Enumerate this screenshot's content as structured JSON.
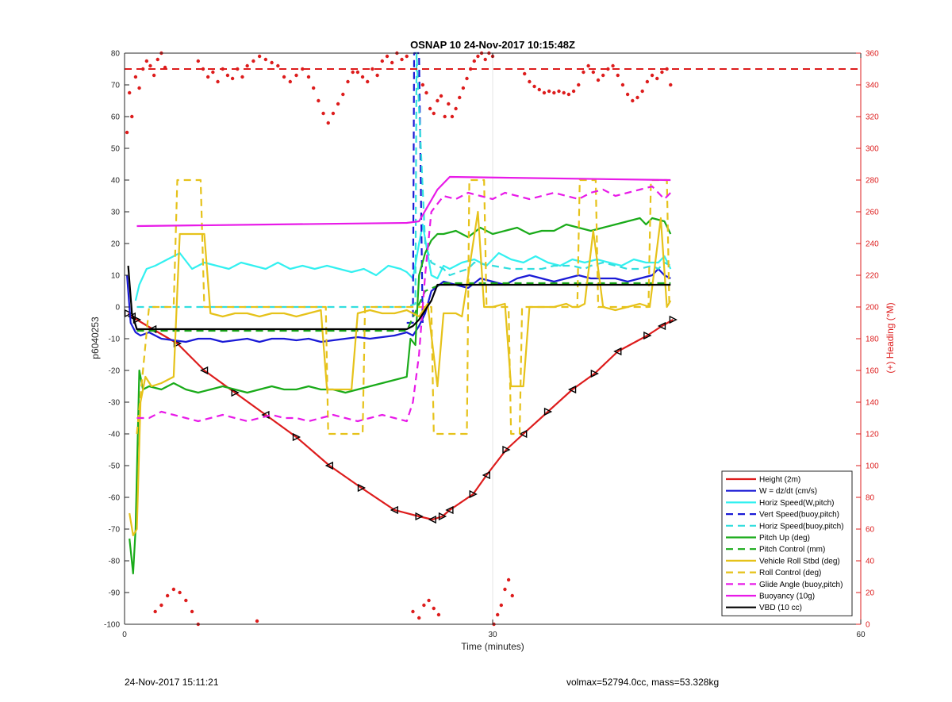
{
  "chart_data": {
    "type": "line",
    "title": "OSNAP 10 24-Nov-2017 10:15:48Z",
    "xlabel": "Time (minutes)",
    "ylabel": "p6040253",
    "y2label": "(+) Heading (°M)",
    "xlim": [
      0,
      60
    ],
    "ylim": [
      -100,
      80
    ],
    "y2lim": [
      0,
      360
    ],
    "x_ticks": [
      0,
      30,
      60
    ],
    "y_ticks": [
      -100,
      -90,
      -80,
      -70,
      -60,
      -50,
      -40,
      -30,
      -20,
      -10,
      0,
      10,
      20,
      30,
      40,
      50,
      60,
      70,
      80
    ],
    "y2_ticks": [
      0,
      20,
      40,
      60,
      80,
      100,
      120,
      140,
      160,
      180,
      200,
      220,
      240,
      260,
      280,
      300,
      320,
      340,
      360
    ],
    "x_grid": true,
    "y_grid": false,
    "legend_position": "bottom-right",
    "colors": {
      "height": "#dd1c1c",
      "w": "#1a1ad6",
      "hspeed": "#33f0f0",
      "pitch": "#1aab1a",
      "roll": "#e6c21a",
      "glide": "#e81ae8",
      "vbd": "#000000",
      "heading": "#dd1c1c",
      "vspeed_buoy": "#1a1ad6",
      "hspeed_buoy": "#33dede"
    },
    "series": [
      {
        "name": "Height (2m)",
        "key": "height",
        "axis": "left",
        "style": "solid",
        "markers": "triangles",
        "x": [
          0.3,
          0.6,
          1.0,
          2.3,
          4.3,
          6.5,
          9.0,
          11.5,
          14.0,
          16.7,
          19.3,
          22.0,
          24.0,
          25.1,
          25.9,
          26.5,
          28.4,
          29.5,
          31.1,
          32.5,
          34.5,
          36.5,
          38.3,
          40.2,
          42.6,
          43.8,
          44.7
        ],
        "y": [
          -2,
          -3,
          -4,
          -7,
          -11.5,
          -20,
          -27,
          -34,
          -41,
          -50,
          -57,
          -64,
          -66,
          -67,
          -66,
          -64,
          -59,
          -53,
          -45,
          -40,
          -33,
          -26,
          -21,
          -14,
          -9,
          -6,
          -4
        ]
      },
      {
        "name": "W = dz/dt (cm/s)",
        "key": "w",
        "axis": "left",
        "style": "solid",
        "x": [
          0.2,
          0.5,
          0.9,
          1.3,
          2.0,
          3.0,
          4.0,
          5.0,
          6.0,
          7.0,
          8.0,
          9.0,
          10.0,
          11.0,
          12.0,
          13.0,
          14.0,
          15.0,
          16.0,
          17.0,
          18.0,
          19.0,
          20.0,
          21.0,
          22.0,
          23.0,
          23.5,
          24.0,
          24.5,
          25.0,
          26.0,
          27.0,
          28.0,
          29.0,
          30.0,
          31.0,
          32.0,
          33.0,
          34.0,
          35.0,
          36.0,
          37.0,
          38.0,
          39.0,
          40.0,
          41.0,
          42.0,
          43.0,
          43.5,
          44.0,
          44.5
        ],
        "y": [
          10,
          -5,
          -8,
          -9,
          -8,
          -10,
          -10.5,
          -11,
          -10,
          -10,
          -11,
          -10.5,
          -10,
          -11,
          -10,
          -10,
          -10.5,
          -10,
          -11,
          -10.5,
          -10,
          -9.5,
          -10,
          -9.5,
          -9,
          -8,
          -9,
          -6,
          -2,
          5,
          8,
          7,
          6,
          9,
          8,
          7,
          9,
          10,
          9,
          8,
          9,
          10,
          9,
          9,
          9,
          8,
          9,
          10,
          12,
          10,
          9
        ]
      },
      {
        "name": "Horiz Speed(W,pitch)",
        "key": "hspeed",
        "axis": "left",
        "style": "solid",
        "x": [
          0.9,
          1.2,
          1.8,
          2.5,
          3.5,
          4.5,
          5.5,
          6.5,
          7.5,
          8.5,
          9.5,
          10.5,
          11.5,
          12.5,
          13.5,
          14.5,
          15.5,
          16.5,
          17.5,
          18.5,
          19.5,
          20.5,
          21.5,
          22.5,
          23.0,
          23.5,
          24.0,
          24.3,
          25.0,
          25.5,
          26.0,
          26.5,
          27.5,
          28.5,
          29.5,
          30.5,
          31.5,
          32.5,
          33.5,
          34.5,
          35.5,
          36.5,
          37.5,
          38.5,
          39.5,
          40.5,
          41.5,
          42.5,
          43.5,
          44.0,
          44.5
        ],
        "y": [
          2,
          7,
          12,
          13,
          15,
          17,
          12,
          14,
          13,
          12,
          14,
          13,
          12,
          14,
          12,
          13,
          12,
          13,
          12,
          11,
          12,
          10,
          13,
          12,
          11,
          9,
          20,
          26,
          10,
          9,
          13,
          12,
          14,
          15,
          13,
          17,
          15,
          14,
          16,
          14,
          13,
          15,
          14,
          15,
          14,
          13,
          15,
          14,
          14,
          16,
          12
        ]
      },
      {
        "name": "Vert Speed(buoy,pitch)",
        "key": "vspeed_buoy",
        "axis": "left",
        "style": "dash",
        "x": [
          23.0,
          23.5,
          23.6,
          24.0,
          24.3
        ],
        "y": [
          -5,
          -5,
          80,
          80,
          -5
        ]
      },
      {
        "name": "Horiz Speed(buoy,pitch)",
        "key": "hspeed_buoy",
        "axis": "left",
        "style": "dash",
        "x": [
          1.0,
          23.0,
          23.7,
          23.8,
          24.5,
          25.0,
          26.0,
          26.5,
          27.2,
          28.0,
          28.5,
          30.0,
          31.5,
          32.0,
          33.0,
          34.0,
          35.0,
          36.0,
          36.5,
          37.5,
          38.0,
          39.0,
          40.0,
          41.0,
          42.0,
          43.0,
          43.5,
          44.0,
          44.5
        ],
        "y": [
          0,
          0,
          1,
          80,
          20,
          14,
          12,
          10,
          11,
          12,
          14,
          13,
          12,
          12,
          12,
          12,
          13,
          13,
          13,
          12,
          13,
          14,
          13,
          12,
          12,
          13,
          12,
          14,
          13
        ]
      },
      {
        "name": "Pitch Up (deg)",
        "key": "pitch",
        "axis": "left",
        "style": "solid",
        "x": [
          0.4,
          0.7,
          0.9,
          1.2,
          1.5,
          2.0,
          3.0,
          4.0,
          5.0,
          6.0,
          7.0,
          8.0,
          9.0,
          10.0,
          11.0,
          12.0,
          13.0,
          14.0,
          15.0,
          16.0,
          17.0,
          18.0,
          19.0,
          20.0,
          21.0,
          22.0,
          23.0,
          23.3,
          23.7,
          24.0,
          24.5,
          25.0,
          25.5,
          26.0,
          27.0,
          28.0,
          29.0,
          30.0,
          31.0,
          32.0,
          33.0,
          34.0,
          35.0,
          36.0,
          37.0,
          38.0,
          39.0,
          40.0,
          41.0,
          42.0,
          42.5,
          43.0,
          44.0,
          44.5
        ],
        "y": [
          -73,
          -84,
          -70,
          -20,
          -26,
          -25,
          -26,
          -24,
          -26,
          -27,
          -26,
          -25,
          -26,
          -27,
          -26,
          -25,
          -26,
          -26,
          -25,
          -26,
          -26,
          -27,
          -26,
          -25,
          -24,
          -23,
          -22,
          -10,
          -12,
          10,
          17,
          21,
          23,
          23,
          24,
          22,
          25,
          23,
          24,
          25,
          23,
          24,
          24,
          26,
          25,
          24,
          25,
          26,
          27,
          28,
          26,
          28,
          27,
          23
        ]
      },
      {
        "name": "Pitch Control (mm)",
        "key": "pitch_control",
        "axis": "left",
        "style": "dash",
        "x": [
          1.0,
          23.0,
          24.5,
          26.0,
          44.5
        ],
        "y": [
          -7.5,
          -7.5,
          5,
          7.5,
          7.5
        ]
      },
      {
        "name": "Vehicle Roll Stbd (deg)",
        "key": "roll",
        "axis": "left",
        "style": "solid",
        "x": [
          0.4,
          0.7,
          1.0,
          1.3,
          1.7,
          2.2,
          3.0,
          4.0,
          4.5,
          6.5,
          7.0,
          8.0,
          9.0,
          10.0,
          11.0,
          12.0,
          13.0,
          14.0,
          15.0,
          16.0,
          16.5,
          18.5,
          19.0,
          20.0,
          21.0,
          22.0,
          23.0,
          24.0,
          24.7,
          25.5,
          26.0,
          27.0,
          27.5,
          28.8,
          29.3,
          30.0,
          31.0,
          31.5,
          32.5,
          33.0,
          35.0,
          36.0,
          36.5,
          37.0,
          37.5,
          38.2,
          39.0,
          40.0,
          41.0,
          42.0,
          42.8,
          43.7,
          44.2,
          44.5
        ],
        "y": [
          -65,
          -72,
          -70,
          -30,
          -22,
          -25,
          -24,
          -22,
          23,
          23,
          -2,
          -3,
          -2,
          -2,
          -3,
          -2,
          -2,
          -3,
          -2,
          -1,
          -26,
          -26,
          -2,
          -1,
          -2,
          -2,
          -1,
          -3,
          1,
          -25,
          -2,
          -2,
          -3,
          30,
          0,
          0,
          1,
          -25,
          -25,
          0,
          0,
          1,
          0,
          0,
          1,
          24,
          0,
          -1,
          0,
          1,
          0,
          28,
          0,
          2
        ]
      },
      {
        "name": "Roll Control (deg)",
        "key": "roll_control",
        "axis": "left",
        "style": "dash",
        "x": [
          1.0,
          2.0,
          4.0,
          4.3,
          6.2,
          6.5,
          16.4,
          16.6,
          19.4,
          19.6,
          23.5,
          25.0,
          25.2,
          27.9,
          28.1,
          29.3,
          29.5,
          31.3,
          31.5,
          32.2,
          32.4,
          36.9,
          37.1,
          38.4,
          38.6,
          42.7,
          42.9,
          44.2,
          44.4
        ],
        "y": [
          -40,
          0,
          0,
          40,
          40,
          0,
          0,
          -40,
          -40,
          0,
          0,
          0,
          -40,
          -40,
          40,
          40,
          0,
          0,
          -40,
          -40,
          0,
          0,
          40,
          40,
          0,
          0,
          40,
          40,
          0
        ]
      },
      {
        "name": "Glide Angle (buoy,pitch)",
        "key": "glide",
        "axis": "left",
        "style": "dash",
        "x": [
          1.0,
          2.0,
          3.0,
          4.0,
          5.0,
          6.0,
          7.0,
          8.0,
          9.0,
          10.0,
          11.0,
          12.0,
          13.0,
          14.0,
          15.0,
          16.0,
          17.0,
          18.0,
          19.0,
          20.0,
          21.0,
          22.0,
          23.0,
          23.5,
          24.0,
          24.5,
          25.0,
          26.0,
          27.0,
          28.0,
          29.0,
          30.0,
          31.0,
          32.0,
          33.0,
          34.0,
          35.0,
          36.0,
          37.0,
          38.0,
          39.0,
          40.0,
          41.0,
          42.0,
          43.0,
          44.0,
          44.5
        ],
        "y": [
          -35,
          -35,
          -33,
          -34,
          -35,
          -36,
          -35,
          -34,
          -35,
          -36,
          -35,
          -34,
          -35,
          -35,
          -36,
          -35,
          -34,
          -35,
          -36,
          -35,
          -34,
          -35,
          -36,
          -30,
          -15,
          10,
          30,
          35,
          34,
          36,
          35,
          34,
          36,
          35,
          34,
          35,
          36,
          35,
          34,
          36,
          37,
          35,
          36,
          37,
          38,
          34,
          36
        ]
      },
      {
        "name": "Buoyancy (10g)",
        "key": "buoyancy",
        "axis": "left",
        "style": "solid",
        "x": [
          1.0,
          23.0,
          24.0,
          25.5,
          26.5,
          44.5
        ],
        "y": [
          25.5,
          26.5,
          27,
          37,
          41,
          40
        ]
      },
      {
        "name": "VBD (10 cc)",
        "key": "vbd",
        "axis": "left",
        "style": "solid",
        "x": [
          0.3,
          0.6,
          1.0,
          1.5,
          23.0,
          23.5,
          24.0,
          25.0,
          25.5,
          44.5
        ],
        "y": [
          13,
          -2,
          -7,
          -7,
          -7,
          -6,
          -4,
          2,
          7,
          7
        ]
      },
      {
        "name": "",
        "key": "heading",
        "axis": "right",
        "style": "dots",
        "x": [
          0.2,
          0.4,
          0.6,
          0.9,
          1.2,
          1.5,
          1.8,
          2.1,
          2.4,
          2.7,
          3.0,
          3.3,
          6.0,
          6.4,
          6.8,
          7.2,
          7.6,
          8.0,
          8.4,
          8.8,
          9.2,
          9.6,
          10.0,
          10.5,
          11.0,
          11.5,
          12.0,
          12.5,
          13.0,
          13.5,
          14.0,
          14.5,
          15.0,
          15.4,
          15.8,
          16.2,
          16.6,
          17.0,
          17.4,
          17.8,
          18.2,
          18.6,
          19.0,
          19.4,
          19.8,
          20.2,
          20.6,
          21.0,
          21.4,
          21.8,
          22.2,
          22.6,
          23.0,
          24.3,
          24.6,
          24.9,
          25.2,
          25.5,
          25.8,
          26.1,
          26.4,
          26.7,
          27.0,
          27.3,
          27.6,
          27.9,
          28.2,
          28.5,
          28.8,
          29.1,
          29.4,
          29.7,
          30.0,
          32.6,
          33.0,
          33.4,
          33.8,
          34.2,
          34.6,
          35.0,
          35.4,
          35.8,
          36.2,
          36.6,
          37.0,
          37.4,
          37.8,
          38.2,
          38.6,
          39.0,
          39.4,
          39.8,
          40.2,
          40.6,
          41.0,
          41.4,
          41.8,
          42.2,
          42.6,
          43.0,
          43.4,
          43.8,
          44.2,
          44.5,
          2.5,
          3.0,
          3.5,
          4.0,
          4.5,
          5.0,
          5.5,
          6.0,
          10.8,
          23.5,
          24.0,
          24.4,
          24.8,
          25.2,
          25.6,
          30.1,
          30.4,
          30.7,
          31.0,
          31.3,
          31.6
        ],
        "y": [
          310,
          335,
          320,
          345,
          338,
          350,
          355,
          352,
          346,
          356,
          360,
          351,
          355,
          350,
          345,
          348,
          342,
          350,
          346,
          344,
          350,
          345,
          352,
          355,
          358,
          356,
          354,
          352,
          345,
          342,
          346,
          350,
          345,
          338,
          330,
          322,
          316,
          322,
          328,
          334,
          342,
          348,
          348,
          345,
          342,
          350,
          346,
          355,
          358,
          354,
          360,
          356,
          358,
          340,
          335,
          325,
          322,
          330,
          333,
          320,
          328,
          320,
          325,
          332,
          338,
          344,
          350,
          355,
          358,
          360,
          356,
          360,
          358,
          347,
          342,
          339,
          337,
          335,
          336,
          335,
          336,
          335,
          334,
          336,
          340,
          348,
          352,
          348,
          343,
          346,
          350,
          352,
          346,
          340,
          334,
          330,
          332,
          336,
          342,
          346,
          344,
          348,
          350,
          340,
          8,
          12,
          18,
          22,
          20,
          15,
          8,
          0,
          2,
          8,
          4,
          12,
          15,
          10,
          6,
          0,
          6,
          12,
          22,
          28,
          18
        ]
      }
    ],
    "footer_left": "24-Nov-2017 15:11:21",
    "footer_right": "volmax=52794.0cc, mass=53.328kg"
  }
}
